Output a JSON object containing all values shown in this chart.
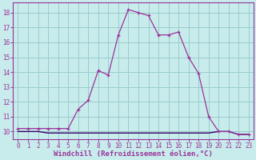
{
  "xlabel": "Windchill (Refroidissement éolien,°C)",
  "x_values": [
    0,
    1,
    2,
    3,
    4,
    5,
    6,
    7,
    8,
    9,
    10,
    11,
    12,
    13,
    14,
    15,
    16,
    17,
    18,
    19,
    20,
    21,
    22,
    23
  ],
  "y_main": [
    10.2,
    10.2,
    10.2,
    10.2,
    10.2,
    10.2,
    11.5,
    12.1,
    14.1,
    13.8,
    16.5,
    18.2,
    18.0,
    17.8,
    16.5,
    16.5,
    16.7,
    15.0,
    13.9,
    11.0,
    10.0,
    10.0,
    9.8,
    9.8
  ],
  "y_flat": [
    10.0,
    10.0,
    10.0,
    9.9,
    9.9,
    9.9,
    9.9,
    9.9,
    9.9,
    9.9,
    9.9,
    9.9,
    9.9,
    9.9,
    9.9,
    9.9,
    9.9,
    9.9,
    9.9,
    9.9,
    10.0,
    10.0,
    9.8,
    9.8
  ],
  "line_color": "#993399",
  "flat_color": "#330066",
  "bg_color": "#c8ecec",
  "grid_color": "#99cccc",
  "ylim": [
    9.5,
    18.7
  ],
  "xlim": [
    -0.5,
    23.5
  ],
  "yticks": [
    10,
    11,
    12,
    13,
    14,
    15,
    16,
    17,
    18
  ],
  "xticks": [
    0,
    1,
    2,
    3,
    4,
    5,
    6,
    7,
    8,
    9,
    10,
    11,
    12,
    13,
    14,
    15,
    16,
    17,
    18,
    19,
    20,
    21,
    22,
    23
  ],
  "tick_fontsize": 5.5,
  "xlabel_fontsize": 6.5,
  "marker": "D",
  "markersize": 2.5
}
